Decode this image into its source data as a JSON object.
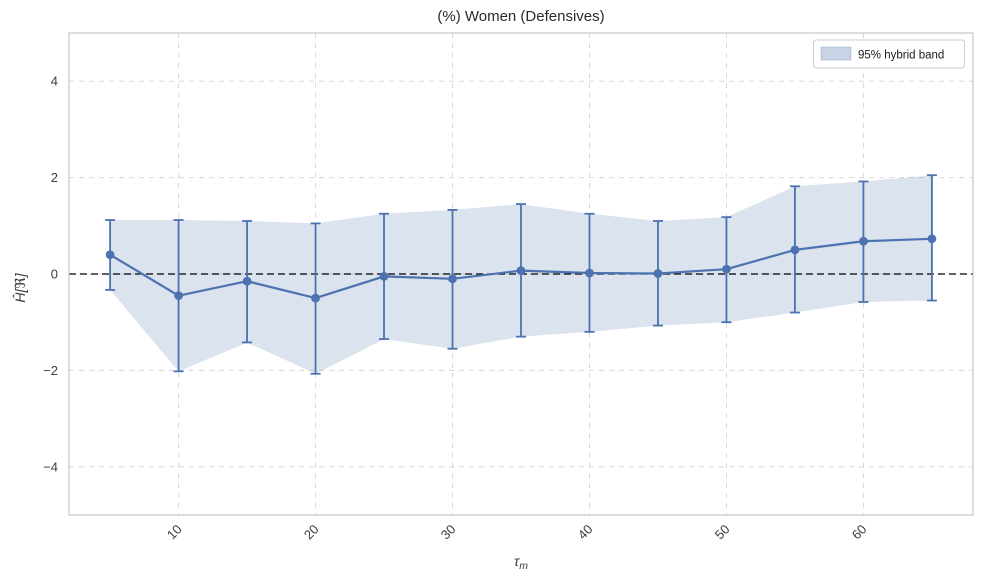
{
  "window": {
    "title": "(%) Women (Defensives)"
  },
  "chart_data": {
    "type": "line",
    "title": "(%) Women (Defensives)",
    "xlabel_base": "τ",
    "xlabel_sub": "m",
    "ylabel": "Ĥ[ℜ]",
    "x": [
      5,
      10,
      15,
      20,
      25,
      30,
      35,
      40,
      45,
      50,
      55,
      60,
      65
    ],
    "y": [
      0.4,
      -0.45,
      -0.15,
      -0.5,
      -0.05,
      -0.1,
      0.07,
      0.02,
      0.01,
      0.1,
      0.5,
      0.68,
      0.73
    ],
    "band_low": [
      -0.33,
      -2.02,
      -1.42,
      -2.07,
      -1.35,
      -1.55,
      -1.3,
      -1.2,
      -1.07,
      -1.0,
      -0.8,
      -0.58,
      -0.55
    ],
    "band_high": [
      1.12,
      1.12,
      1.1,
      1.05,
      1.25,
      1.33,
      1.45,
      1.25,
      1.1,
      1.18,
      1.82,
      1.92,
      2.05
    ],
    "xlim": [
      2,
      68
    ],
    "ylim": [
      -5,
      5
    ],
    "xticks": [
      10,
      20,
      30,
      40,
      50,
      60
    ],
    "xtick_labels": [
      "10",
      "20",
      "30",
      "40",
      "50",
      "60"
    ],
    "xtick_rotation": 45,
    "yticks": [
      -4,
      -2,
      0,
      2,
      4
    ],
    "ytick_labels": [
      "−4",
      "−2",
      "0",
      "2",
      "4"
    ],
    "grid": true,
    "zero_line": true,
    "legend": {
      "label": "95% hybrid band",
      "position": "upper right"
    },
    "colors": {
      "line": "#4c72b0",
      "band": "rgba(76,114,176,0.20)",
      "legend_swatch": "rgba(76,114,176,0.30)",
      "grid": "#d8d8d8",
      "spine": "#c3c7cb",
      "zero_line": "#000000",
      "title_text": "#2b2b2b",
      "tick_text": "#3c3c3c",
      "legend_border": "#cccccc",
      "background": "#ffffff"
    }
  }
}
